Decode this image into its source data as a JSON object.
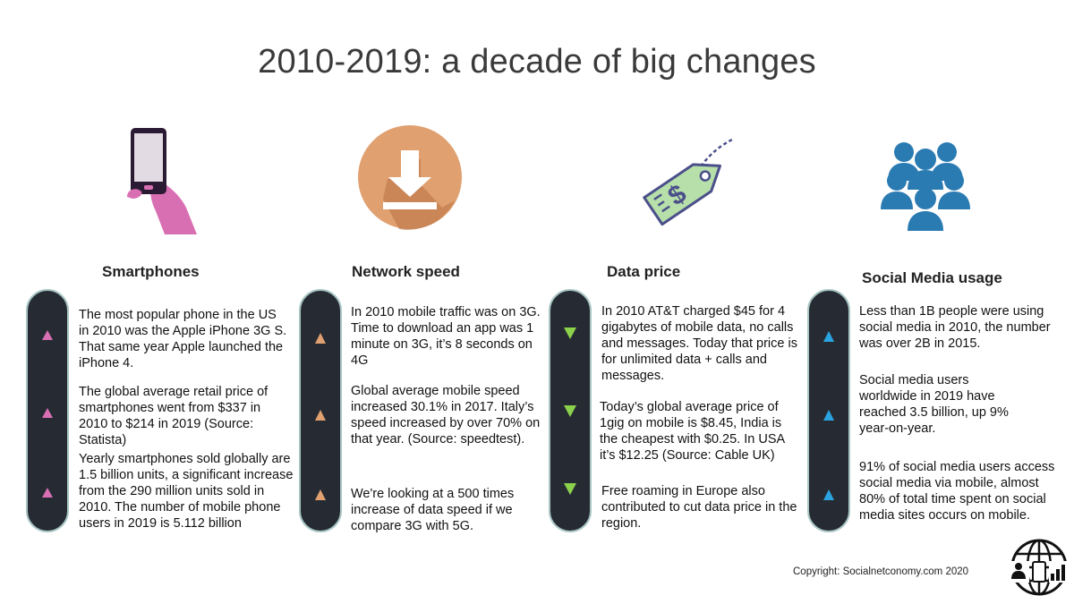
{
  "title": "2010-2019: a decade of big changes",
  "colors": {
    "smartphones_accent": "#d96fb3",
    "network_accent": "#e0a070",
    "data_price_accent": "#8bd14c",
    "social_accent": "#2aa3e0",
    "pill_bg": "#262b33",
    "pill_border": "#a9c6c4"
  },
  "columns": [
    {
      "title": "Smartphones",
      "icon": "smartphone-in-hand-icon",
      "trend": "up",
      "items": [
        "The most popular phone in the US in 2010 was the Apple iPhone 3G S. That same year Apple launched the iPhone 4.",
        "The global average retail price of smartphones went from $337 in 2010 to $214 in 2019 (Source: Statista)",
        "Yearly smartphones sold globally are 1.5 billion units, a significant increase from the 290 million units sold in 2010. The number of mobile phone users in 2019 is 5.112 billion"
      ]
    },
    {
      "title": "Network speed",
      "icon": "download-icon",
      "trend": "up",
      "items": [
        "In 2010 mobile traffic was on 3G. Time to download an app was 1 minute on 3G, it’s 8 seconds on 4G",
        "Global average mobile speed increased 30.1% in 2017. Italy’s speed increased by over 70% on that year. (Source: speedtest).",
        "We're looking at a 500 times increase of data speed if we compare 3G with 5G."
      ]
    },
    {
      "title": "Data price",
      "icon": "price-tag-icon",
      "trend": "down",
      "items": [
        "In 2010 AT&T charged $45 for 4 gigabytes of mobile data, no calls and messages. Today that price is for unlimited data + calls and messages.",
        "Today’s global average price of 1gig on mobile is $8.45, India is the cheapest with $0.25. In USA it’s $12.25 (Source: Cable UK)",
        "Free roaming in Europe also contributed to cut data price in the region."
      ]
    },
    {
      "title": "Social Media usage",
      "icon": "people-group-icon",
      "trend": "up",
      "items": [
        "Less than 1B people were using social media in 2010, the number was over 2B in 2015.",
        "Social media users worldwide in 2019 have reached 3.5 billion, up 9% year-on-year.",
        "91% of social media users access social media via mobile, almost 80% of total time spent on social media sites occurs on mobile."
      ]
    }
  ],
  "copyright": "Copyright: Socialnetconomy.com 2020",
  "logo_icon": "globe-devices-logo-icon"
}
